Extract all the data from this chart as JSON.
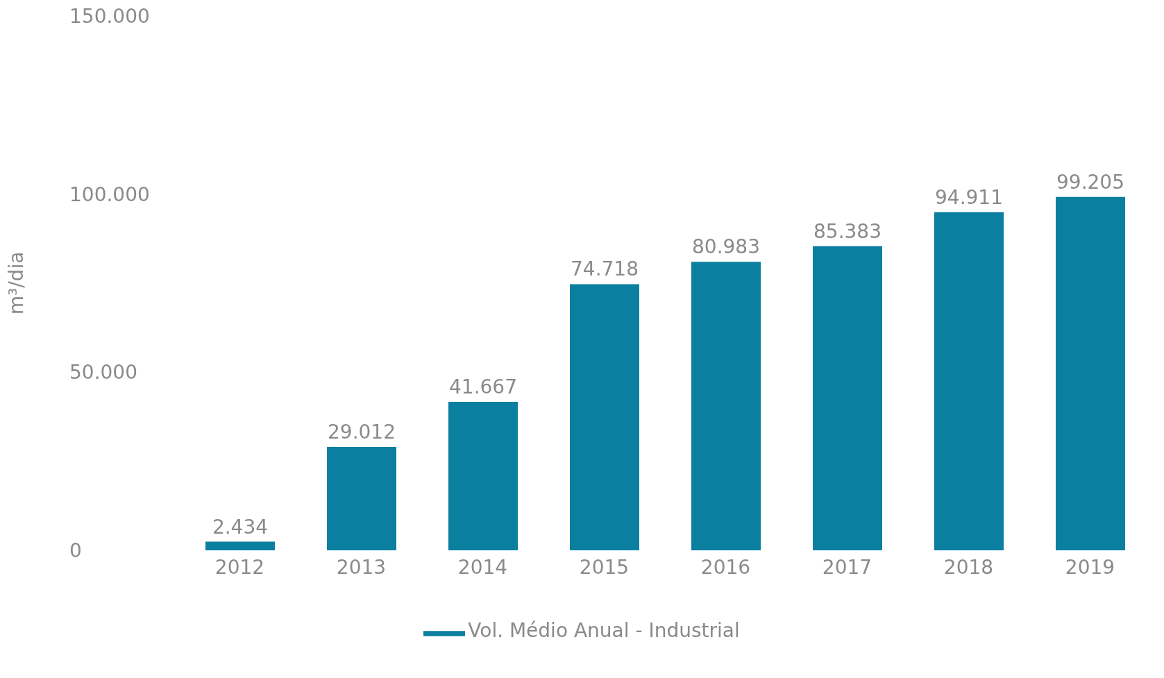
{
  "chart_data": {
    "type": "bar",
    "ylabel": "m³/dia",
    "categories": [
      "2012",
      "2013",
      "2014",
      "2015",
      "2016",
      "2017",
      "2018",
      "2019"
    ],
    "series": [
      {
        "name": "Vol. Médio Anual - Industrial",
        "color": "#0b7f9f",
        "values": [
          2434,
          29012,
          41667,
          74718,
          80983,
          85383,
          94911,
          99205
        ],
        "value_labels": [
          "2.434",
          "29.012",
          "41.667",
          "74.718",
          "80.983",
          "85.383",
          "94.911",
          "99.205"
        ]
      }
    ],
    "ylim": [
      0,
      150000
    ],
    "yticks": [
      0,
      {
        "value": 50000,
        "label": "50.000"
      },
      {
        "value": 100000,
        "label": "100.000"
      },
      {
        "value": 150000,
        "label": "150.000"
      }
    ],
    "grid": false,
    "legend": "bottom"
  }
}
